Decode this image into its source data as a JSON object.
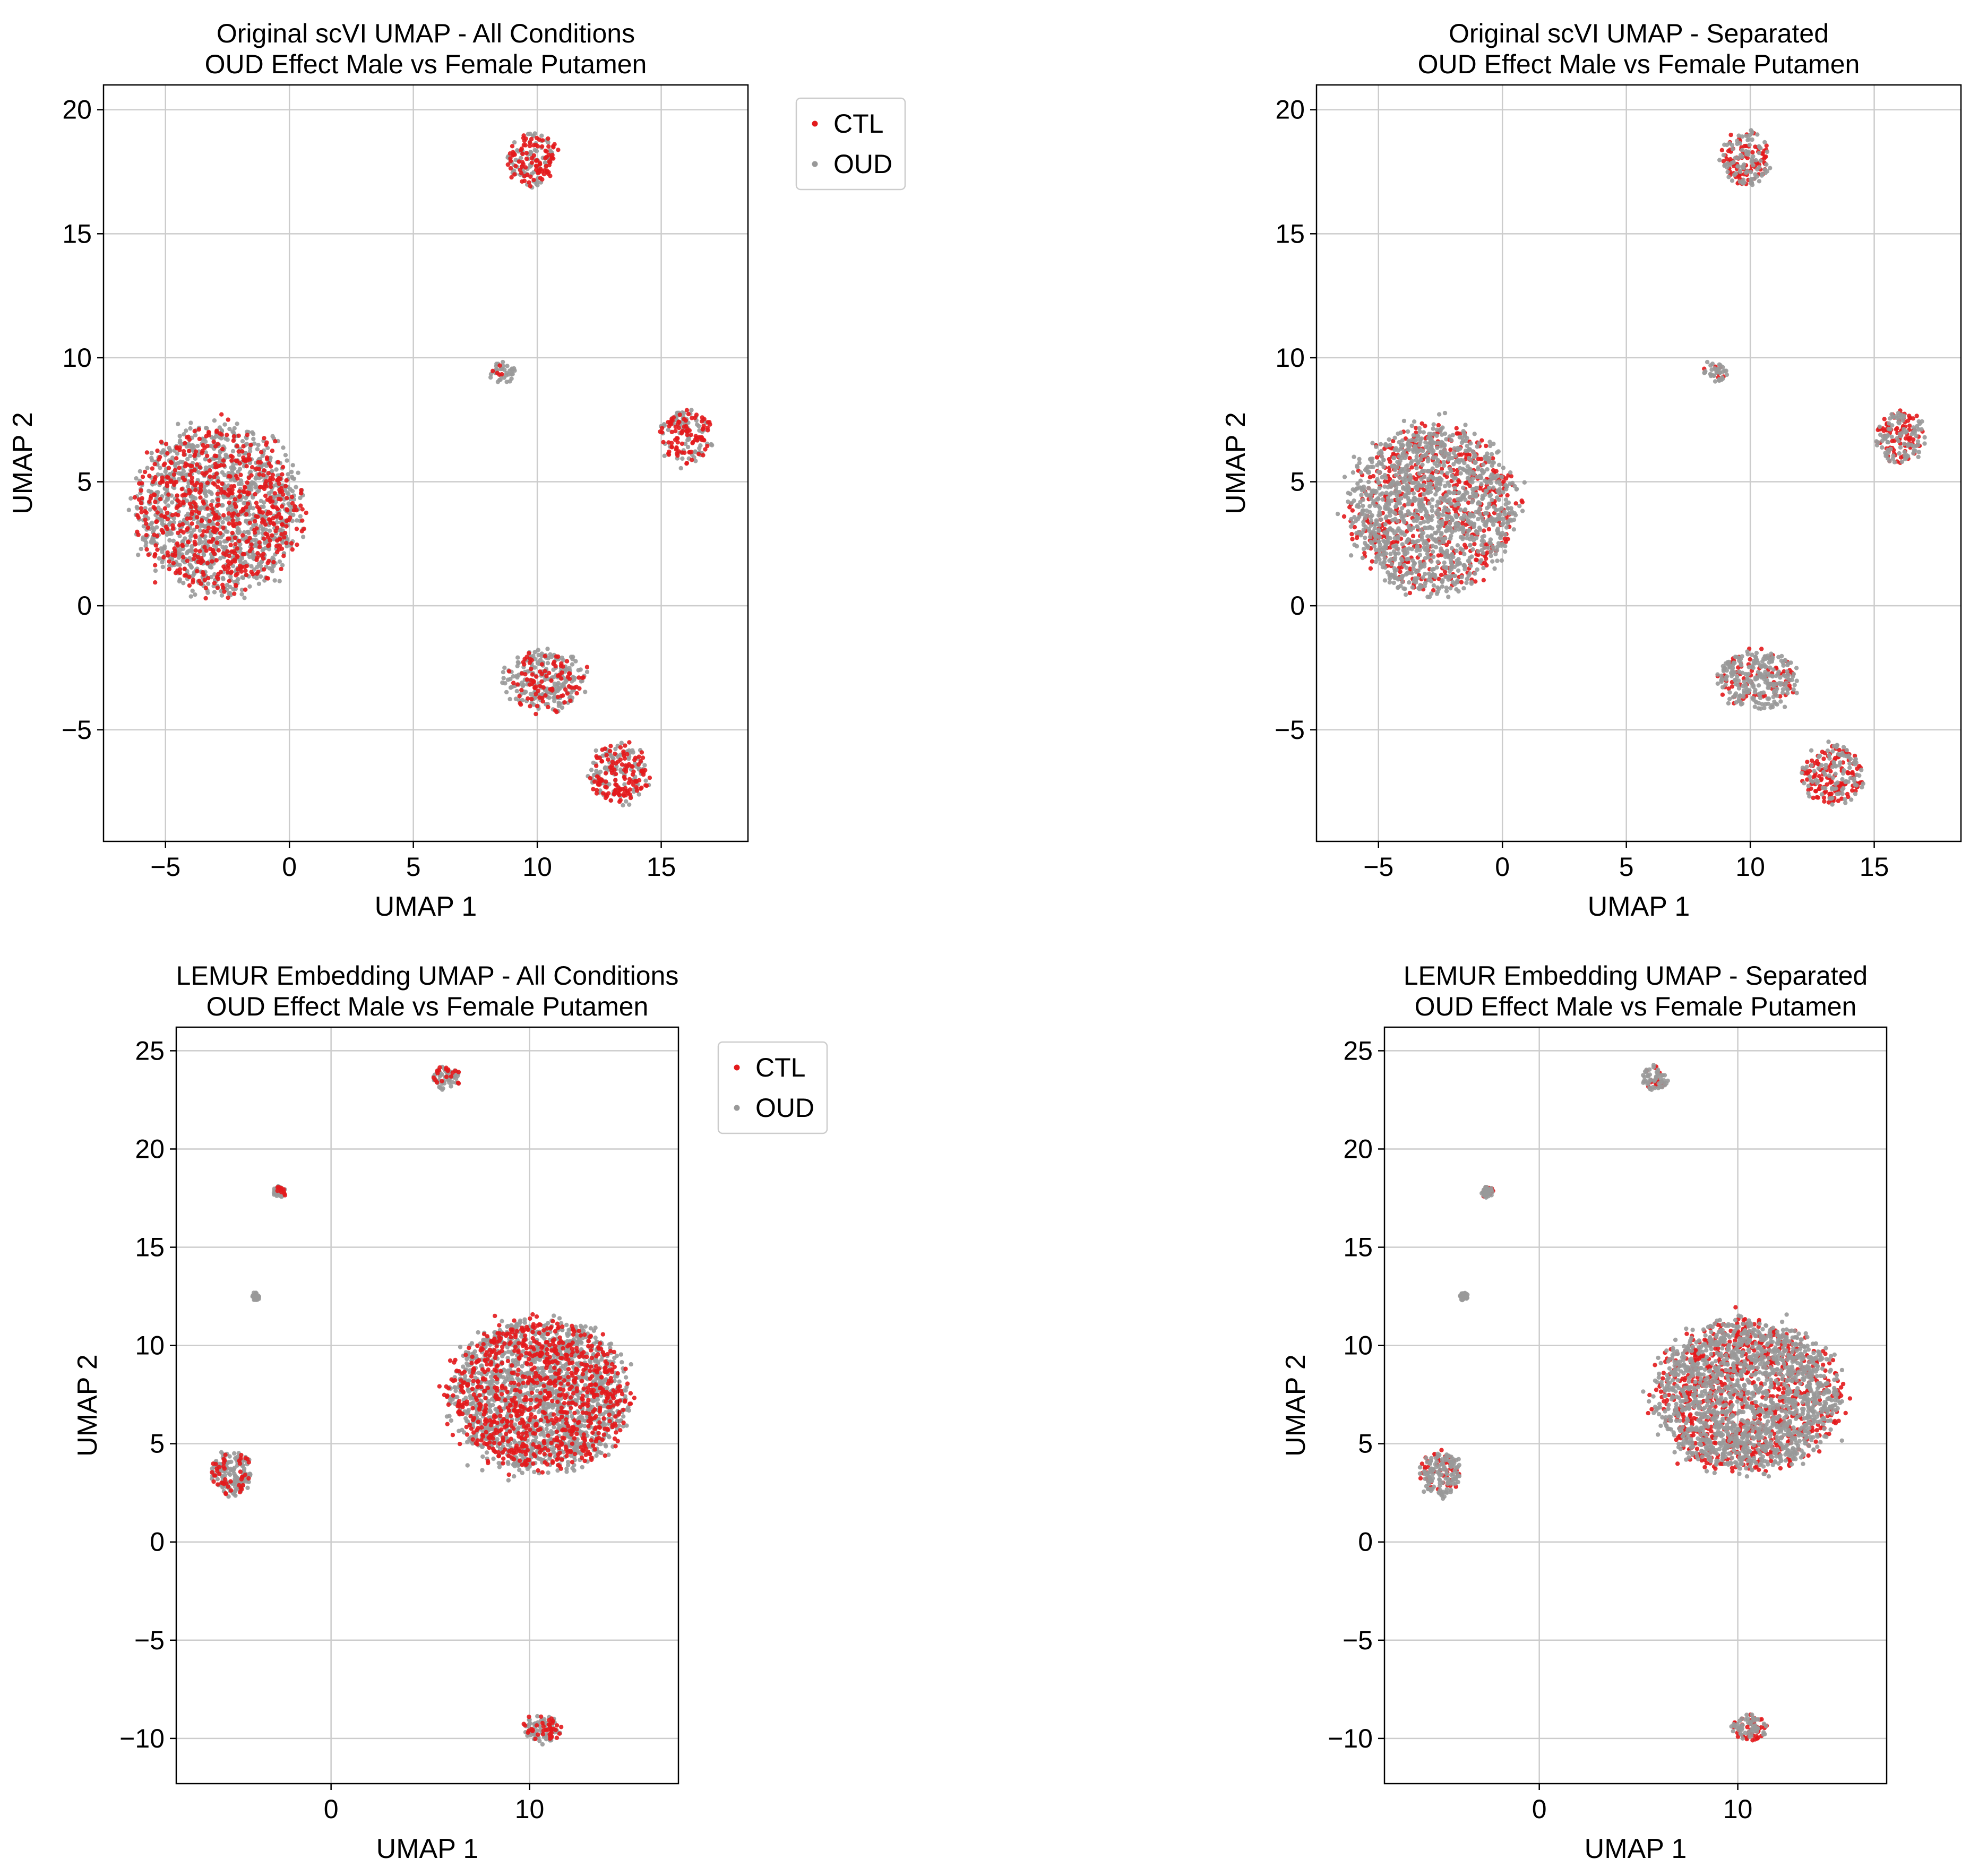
{
  "colors": {
    "CTL": "#e31a1c",
    "OUD": "#999999",
    "grid": "#cccccc"
  },
  "chart_data": [
    {
      "id": "scvi-all",
      "type": "scatter",
      "title": "Original scVI UMAP - All Conditions",
      "subtitle": "OUD Effect Male vs Female Putamen",
      "xlabel": "UMAP 1",
      "ylabel": "UMAP 2",
      "xlim": [
        -7.5,
        18.5
      ],
      "ylim": [
        -9.5,
        21
      ],
      "xticks": [
        -5,
        0,
        5,
        10,
        15
      ],
      "yticks": [
        -5,
        0,
        5,
        10,
        15,
        20
      ],
      "xtick_labels": [
        "−5",
        "0",
        "5",
        "10",
        "15"
      ],
      "ytick_labels": [
        "−5",
        "0",
        "5",
        "10",
        "15",
        "20"
      ],
      "grid": true,
      "legend": {
        "placement": "outside upper right",
        "entries": [
          "CTL",
          "OUD"
        ]
      },
      "series": [
        {
          "name": "CTL",
          "color": "#e31a1c"
        },
        {
          "name": "OUD",
          "color": "#999999"
        }
      ],
      "clusters": [
        {
          "label": "large cluster",
          "cx": -2.8,
          "cy": 3.9,
          "rx": 3.3,
          "ry": 3.3,
          "ctl_fraction": 0.35
        },
        {
          "label": "top cluster",
          "cx": 9.8,
          "cy": 18.0,
          "rx": 1.0,
          "ry": 1.1,
          "ctl_fraction": 0.5
        },
        {
          "label": "right cluster",
          "cx": 16.0,
          "cy": 6.8,
          "rx": 1.0,
          "ry": 1.1,
          "ctl_fraction": 0.5
        },
        {
          "label": "bottom cluster",
          "cx": 13.3,
          "cy": -6.8,
          "rx": 1.2,
          "ry": 1.2,
          "ctl_fraction": 0.55
        },
        {
          "label": "small cluster",
          "cx": 8.6,
          "cy": 9.4,
          "rx": 0.5,
          "ry": 0.4,
          "ctl_fraction": 0.2
        },
        {
          "label": "scatter band",
          "cx": 10.3,
          "cy": -3.0,
          "rx": 1.6,
          "ry": 1.2,
          "ctl_fraction": 0.3
        }
      ]
    },
    {
      "id": "scvi-sep",
      "type": "scatter",
      "title": "Original scVI UMAP - Separated",
      "subtitle": "OUD Effect Male vs Female Putamen",
      "xlabel": "UMAP 1",
      "ylabel": "UMAP 2",
      "xlim": [
        -7.5,
        18.5
      ],
      "ylim": [
        -9.5,
        21
      ],
      "xticks": [
        -5,
        0,
        5,
        10,
        15
      ],
      "yticks": [
        -5,
        0,
        5,
        10,
        15,
        20
      ],
      "xtick_labels": [
        "−5",
        "0",
        "5",
        "10",
        "15"
      ],
      "ytick_labels": [
        "−5",
        "0",
        "5",
        "10",
        "15",
        "20"
      ],
      "grid": true,
      "legend": null,
      "series": [
        {
          "name": "CTL",
          "color": "#e31a1c"
        },
        {
          "name": "OUD",
          "color": "#999999"
        }
      ],
      "clusters": [
        {
          "label": "large cluster",
          "cx": -2.8,
          "cy": 3.9,
          "rx": 3.3,
          "ry": 3.3,
          "ctl_fraction": 0.3
        },
        {
          "label": "top cluster",
          "cx": 9.8,
          "cy": 18.0,
          "rx": 1.0,
          "ry": 1.1,
          "ctl_fraction": 0.45
        },
        {
          "label": "right cluster",
          "cx": 16.0,
          "cy": 6.8,
          "rx": 1.0,
          "ry": 1.1,
          "ctl_fraction": 0.45
        },
        {
          "label": "bottom cluster",
          "cx": 13.3,
          "cy": -6.8,
          "rx": 1.2,
          "ry": 1.2,
          "ctl_fraction": 0.55
        },
        {
          "label": "small cluster",
          "cx": 8.6,
          "cy": 9.4,
          "rx": 0.5,
          "ry": 0.4,
          "ctl_fraction": 0.2
        },
        {
          "label": "scatter band",
          "cx": 10.3,
          "cy": -3.0,
          "rx": 1.6,
          "ry": 1.2,
          "ctl_fraction": 0.3
        }
      ]
    },
    {
      "id": "lemur-all",
      "type": "scatter",
      "title": "LEMUR Embedding UMAP - All Conditions",
      "subtitle": "OUD Effect Male vs Female Putamen",
      "xlabel": "UMAP 1",
      "ylabel": "UMAP 2",
      "xlim": [
        -7.8,
        17.5
      ],
      "ylim": [
        -12.3,
        26.2
      ],
      "xticks": [
        0,
        10
      ],
      "yticks": [
        -10,
        -5,
        0,
        5,
        10,
        15,
        20,
        25
      ],
      "xtick_labels": [
        "0",
        "10"
      ],
      "ytick_labels": [
        "−10",
        "−5",
        "0",
        "5",
        "10",
        "15",
        "20",
        "25"
      ],
      "grid": true,
      "legend": {
        "placement": "outside upper right",
        "entries": [
          "CTL",
          "OUD"
        ]
      },
      "series": [
        {
          "name": "CTL",
          "color": "#e31a1c"
        },
        {
          "name": "OUD",
          "color": "#999999"
        }
      ],
      "clusters": [
        {
          "label": "main cluster",
          "cx": 10.5,
          "cy": 7.5,
          "rx": 4.5,
          "ry": 3.8,
          "ctl_fraction": 0.35
        },
        {
          "label": "left cluster",
          "cx": -5.0,
          "cy": 3.5,
          "rx": 1.0,
          "ry": 1.1,
          "ctl_fraction": 0.3
        },
        {
          "label": "top cluster",
          "cx": 5.8,
          "cy": 23.6,
          "rx": 0.7,
          "ry": 0.6,
          "ctl_fraction": 0.3
        },
        {
          "label": "bottom cluster",
          "cx": 10.6,
          "cy": -9.5,
          "rx": 0.9,
          "ry": 0.7,
          "ctl_fraction": 0.4
        },
        {
          "label": "small cluster",
          "cx": -2.6,
          "cy": 17.8,
          "rx": 0.3,
          "ry": 0.3,
          "ctl_fraction": 0.3
        },
        {
          "label": "tiny cluster",
          "cx": -3.8,
          "cy": 12.5,
          "rx": 0.2,
          "ry": 0.2,
          "ctl_fraction": 0.0
        }
      ]
    },
    {
      "id": "lemur-sep",
      "type": "scatter",
      "title": "LEMUR Embedding UMAP - Separated",
      "subtitle": "OUD Effect Male vs Female Putamen",
      "xlabel": "UMAP 1",
      "ylabel": "UMAP 2",
      "xlim": [
        -7.8,
        17.5
      ],
      "ylim": [
        -12.3,
        26.2
      ],
      "xticks": [
        0,
        10
      ],
      "yticks": [
        -10,
        -5,
        0,
        5,
        10,
        15,
        20,
        25
      ],
      "xtick_labels": [
        "0",
        "10"
      ],
      "ytick_labels": [
        "−10",
        "−5",
        "0",
        "5",
        "10",
        "15",
        "20",
        "25"
      ],
      "grid": true,
      "legend": null,
      "series": [
        {
          "name": "CTL",
          "color": "#e31a1c"
        },
        {
          "name": "OUD",
          "color": "#999999"
        }
      ],
      "clusters": [
        {
          "label": "main cluster",
          "cx": 10.5,
          "cy": 7.5,
          "rx": 4.5,
          "ry": 3.8,
          "ctl_fraction": 0.35
        },
        {
          "label": "left cluster",
          "cx": -5.0,
          "cy": 3.5,
          "rx": 1.0,
          "ry": 1.1,
          "ctl_fraction": 0.3
        },
        {
          "label": "top cluster",
          "cx": 5.8,
          "cy": 23.6,
          "rx": 0.7,
          "ry": 0.6,
          "ctl_fraction": 0.3
        },
        {
          "label": "bottom cluster",
          "cx": 10.6,
          "cy": -9.5,
          "rx": 0.9,
          "ry": 0.7,
          "ctl_fraction": 0.4
        },
        {
          "label": "small cluster",
          "cx": -2.6,
          "cy": 17.8,
          "rx": 0.3,
          "ry": 0.3,
          "ctl_fraction": 0.3
        },
        {
          "label": "tiny cluster",
          "cx": -3.8,
          "cy": 12.5,
          "rx": 0.2,
          "ry": 0.2,
          "ctl_fraction": 0.0
        }
      ]
    }
  ]
}
